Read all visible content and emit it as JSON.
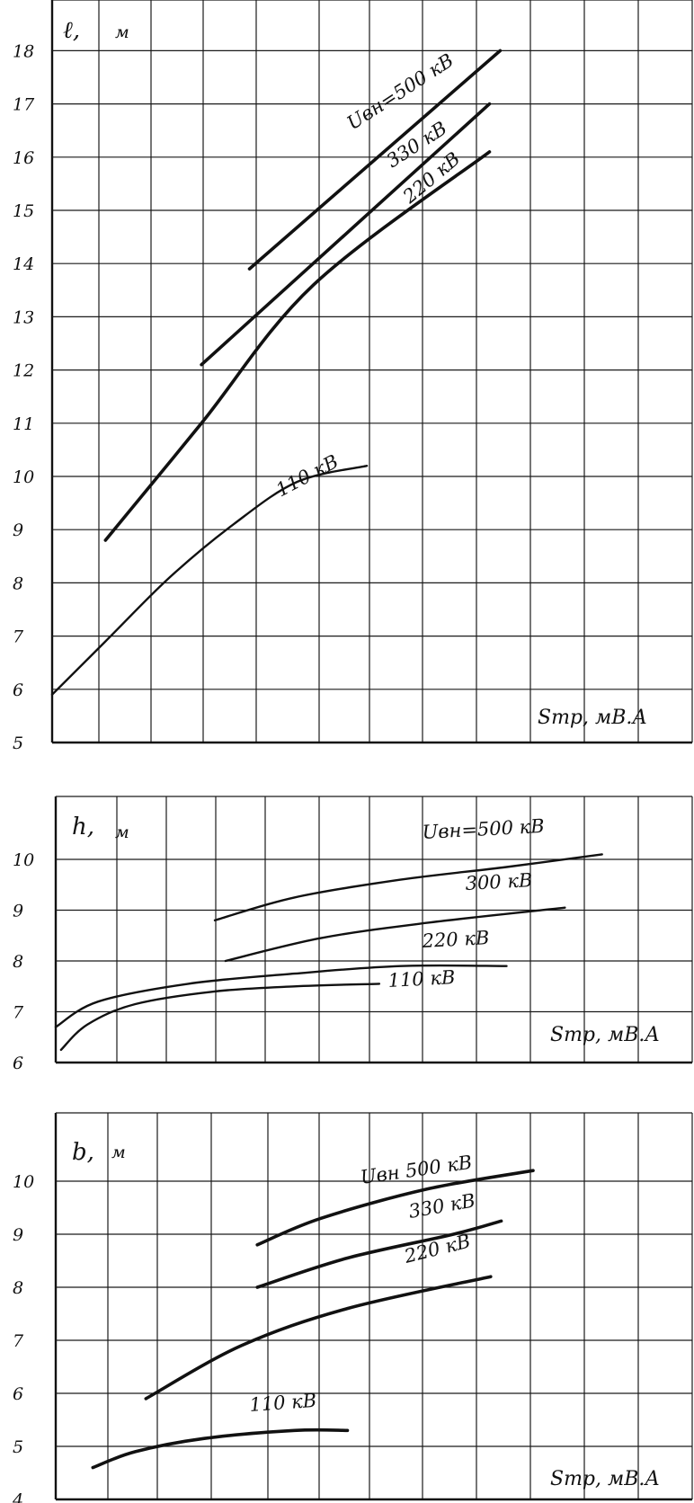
{
  "chart_data": [
    {
      "type": "line",
      "ylabel": "ℓ,",
      "yunit": "м",
      "xlabel": "Sтр, мВ.А",
      "ylim": [
        5,
        18
      ],
      "yticks": [
        5,
        6,
        7,
        8,
        9,
        10,
        11,
        12,
        13,
        14,
        15,
        16,
        17,
        18
      ],
      "xlim": [
        0,
        12
      ],
      "grid": true,
      "series": [
        {
          "name": "Uвн=500 кВ",
          "weight": "heavy",
          "points": [
            [
              3.7,
              13.9
            ],
            [
              8.4,
              18.0
            ]
          ]
        },
        {
          "name": "330 кВ",
          "weight": "heavy",
          "points": [
            [
              2.8,
              12.1
            ],
            [
              8.2,
              17.0
            ]
          ]
        },
        {
          "name": "220 кВ",
          "weight": "heavy",
          "points": [
            [
              1.0,
              8.8
            ],
            [
              2.8,
              11.0
            ],
            [
              4.9,
              13.6
            ],
            [
              8.2,
              16.1
            ]
          ]
        },
        {
          "name": "110 кВ",
          "weight": "light",
          "points": [
            [
              0.0,
              5.9
            ],
            [
              1.0,
              6.9
            ],
            [
              2.2,
              8.1
            ],
            [
              3.4,
              9.1
            ],
            [
              4.6,
              9.9
            ],
            [
              5.9,
              10.2
            ]
          ]
        }
      ]
    },
    {
      "type": "line",
      "ylabel": "h,",
      "yunit": "м",
      "xlabel": "Sтр, мВ.А",
      "ylim": [
        6,
        10
      ],
      "yticks": [
        6,
        7,
        8,
        9,
        10
      ],
      "xlim": [
        0,
        12
      ],
      "grid": true,
      "series": [
        {
          "name": "Uвн=500 кВ",
          "weight": "light",
          "points": [
            [
              3.0,
              8.8
            ],
            [
              4.5,
              9.25
            ],
            [
              6.5,
              9.6
            ],
            [
              8.5,
              9.85
            ],
            [
              10.3,
              10.1
            ]
          ]
        },
        {
          "name": "300 кВ",
          "weight": "light",
          "points": [
            [
              3.2,
              8.0
            ],
            [
              5.0,
              8.45
            ],
            [
              7.0,
              8.75
            ],
            [
              9.6,
              9.05
            ]
          ]
        },
        {
          "name": "220 кВ",
          "weight": "light",
          "points": [
            [
              0.0,
              6.7
            ],
            [
              0.8,
              7.2
            ],
            [
              2.5,
              7.55
            ],
            [
              4.5,
              7.75
            ],
            [
              6.5,
              7.9
            ],
            [
              8.5,
              7.9
            ]
          ]
        },
        {
          "name": "110 кВ",
          "weight": "light",
          "points": [
            [
              0.1,
              6.25
            ],
            [
              0.6,
              6.75
            ],
            [
              1.5,
              7.15
            ],
            [
              3.0,
              7.4
            ],
            [
              4.5,
              7.5
            ],
            [
              6.1,
              7.55
            ]
          ]
        }
      ]
    },
    {
      "type": "line",
      "ylabel": "b,",
      "yunit": "м",
      "xlabel": "Sтр, мВ.А",
      "ylim": [
        4,
        10
      ],
      "yticks": [
        4,
        5,
        6,
        7,
        8,
        9,
        10
      ],
      "xlim": [
        0,
        12
      ],
      "grid": true,
      "series": [
        {
          "name": "Uвн 500 кВ",
          "weight": "heavy",
          "points": [
            [
              3.8,
              8.8
            ],
            [
              5.0,
              9.3
            ],
            [
              7.0,
              9.85
            ],
            [
              9.0,
              10.2
            ]
          ]
        },
        {
          "name": "330 кВ",
          "weight": "heavy",
          "points": [
            [
              3.8,
              8.0
            ],
            [
              5.5,
              8.55
            ],
            [
              7.5,
              9.0
            ],
            [
              8.4,
              9.25
            ]
          ]
        },
        {
          "name": "220 кВ",
          "weight": "heavy",
          "points": [
            [
              1.7,
              5.9
            ],
            [
              3.5,
              6.9
            ],
            [
              5.5,
              7.6
            ],
            [
              8.2,
              8.2
            ]
          ]
        },
        {
          "name": "110 кВ",
          "weight": "heavy",
          "points": [
            [
              0.7,
              4.6
            ],
            [
              1.5,
              4.9
            ],
            [
              2.8,
              5.15
            ],
            [
              4.5,
              5.3
            ],
            [
              5.5,
              5.3
            ]
          ]
        }
      ]
    }
  ]
}
